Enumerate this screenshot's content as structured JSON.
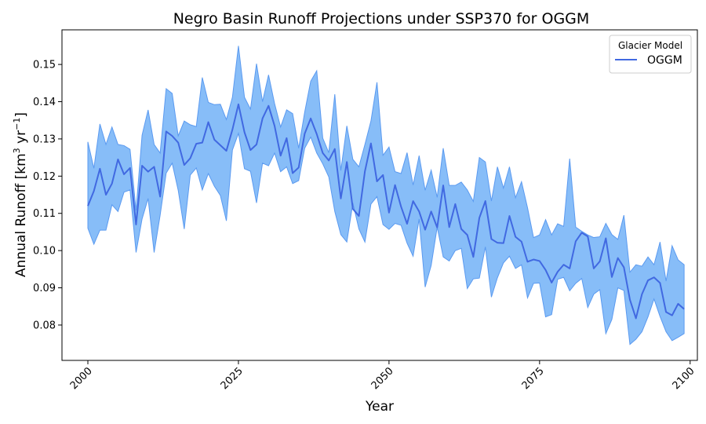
{
  "chart_data": {
    "type": "line",
    "title": "Negro Basin Runoff Projections under SSP370 for OGGM",
    "xlabel": "Year",
    "ylabel": "Annual Runoff [km",
    "ylabel_exp1": "3",
    "ylabel_mid": " yr",
    "ylabel_exp2": "−1",
    "ylabel_end": "]",
    "xlim": [
      1995.7,
      2101.2
    ],
    "ylim": [
      0.0705,
      0.1593
    ],
    "xticks": [
      2000,
      2025,
      2050,
      2075,
      2100
    ],
    "yticks": [
      0.08,
      0.09,
      0.1,
      0.11,
      0.12,
      0.13,
      0.14,
      0.15
    ],
    "ytick_labels": [
      "0.08",
      "0.09",
      "0.10",
      "0.11",
      "0.12",
      "0.13",
      "0.14",
      "0.15"
    ],
    "legend": {
      "title": "Glacier Model",
      "position": "top-right"
    },
    "grid": false,
    "series": [
      {
        "name": "OGGM",
        "color": "#4169e1",
        "band_color": "#87bdf8",
        "band_edge_color": "#5b9af0",
        "x_start": 2000,
        "x_step": 1,
        "mean": [
          0.112,
          0.116,
          0.122,
          0.115,
          0.118,
          0.1245,
          0.1205,
          0.1222,
          0.107,
          0.1228,
          0.1212,
          0.1225,
          0.1145,
          0.132,
          0.1308,
          0.129,
          0.123,
          0.1248,
          0.1287,
          0.129,
          0.1345,
          0.1298,
          0.1283,
          0.1268,
          0.1325,
          0.1393,
          0.1318,
          0.127,
          0.1285,
          0.1355,
          0.1389,
          0.1335,
          0.1255,
          0.1302,
          0.1208,
          0.1223,
          0.1314,
          0.1355,
          0.1313,
          0.1262,
          0.1242,
          0.1273,
          0.114,
          0.1238,
          0.1112,
          0.1093,
          0.1213,
          0.1288,
          0.1186,
          0.1203,
          0.1102,
          0.1176,
          0.1118,
          0.1072,
          0.1133,
          0.1105,
          0.1056,
          0.1105,
          0.1062,
          0.1175,
          0.1063,
          0.1125,
          0.1058,
          0.1042,
          0.0983,
          0.1088,
          0.1133,
          0.1031,
          0.1021,
          0.102,
          0.1093,
          0.1037,
          0.1024,
          0.097,
          0.0976,
          0.0972,
          0.0948,
          0.0914,
          0.0943,
          0.0962,
          0.0952,
          0.1025,
          0.1048,
          0.1038,
          0.0952,
          0.0971,
          0.1033,
          0.0929,
          0.098,
          0.0955,
          0.0868,
          0.0818,
          0.0883,
          0.092,
          0.0928,
          0.0913,
          0.0835,
          0.0826,
          0.0857,
          0.0843
        ],
        "upper": [
          0.1292,
          0.1221,
          0.134,
          0.1285,
          0.1332,
          0.1285,
          0.1282,
          0.1272,
          0.1108,
          0.131,
          0.1378,
          0.1285,
          0.1262,
          0.1435,
          0.1422,
          0.1308,
          0.1348,
          0.1338,
          0.1333,
          0.1465,
          0.1398,
          0.1392,
          0.1393,
          0.1352,
          0.1412,
          0.155,
          0.1412,
          0.138,
          0.1502,
          0.14,
          0.1472,
          0.1395,
          0.1332,
          0.1378,
          0.1368,
          0.1275,
          0.1372,
          0.1455,
          0.1483,
          0.1302,
          0.1263,
          0.142,
          0.1215,
          0.1335,
          0.1245,
          0.1225,
          0.1285,
          0.1348,
          0.1452,
          0.1256,
          0.1278,
          0.1212,
          0.1207,
          0.1263,
          0.1176,
          0.1255,
          0.1162,
          0.1216,
          0.1143,
          0.1275,
          0.1175,
          0.1175,
          0.1184,
          0.1163,
          0.1132,
          0.125,
          0.1238,
          0.1133,
          0.1225,
          0.1168,
          0.1225,
          0.1142,
          0.1185,
          0.1115,
          0.1035,
          0.1042,
          0.1083,
          0.1042,
          0.1072,
          0.1065,
          0.1247,
          0.1063,
          0.1052,
          0.1042,
          0.1035,
          0.1037,
          0.1073,
          0.1043,
          0.103,
          0.1095,
          0.0942,
          0.0962,
          0.0958,
          0.0983,
          0.0962,
          0.1023,
          0.0918,
          0.1013,
          0.0975,
          0.0962
        ],
        "lower": [
          0.106,
          0.1017,
          0.1055,
          0.1055,
          0.1123,
          0.1105,
          0.1157,
          0.1163,
          0.0995,
          0.1085,
          0.114,
          0.0995,
          0.1095,
          0.1208,
          0.1235,
          0.1162,
          0.1058,
          0.1203,
          0.1222,
          0.1163,
          0.1207,
          0.1173,
          0.1148,
          0.108,
          0.127,
          0.1315,
          0.122,
          0.1213,
          0.1128,
          0.1235,
          0.1228,
          0.1262,
          0.1212,
          0.1225,
          0.118,
          0.1188,
          0.1275,
          0.1305,
          0.1262,
          0.1233,
          0.1198,
          0.1105,
          0.1043,
          0.1023,
          0.1128,
          0.1058,
          0.1023,
          0.1125,
          0.1145,
          0.107,
          0.1057,
          0.1073,
          0.1068,
          0.102,
          0.0985,
          0.1085,
          0.0902,
          0.096,
          0.1063,
          0.0983,
          0.0972,
          0.1,
          0.1006,
          0.0898,
          0.0924,
          0.0926,
          0.101,
          0.0875,
          0.0927,
          0.0967,
          0.0985,
          0.0952,
          0.0962,
          0.0873,
          0.0912,
          0.0913,
          0.0822,
          0.0828,
          0.0923,
          0.0928,
          0.0892,
          0.0912,
          0.0925,
          0.0847,
          0.0883,
          0.0895,
          0.0777,
          0.0815,
          0.09,
          0.0893,
          0.0748,
          0.0762,
          0.0782,
          0.0822,
          0.087,
          0.0823,
          0.0782,
          0.0758,
          0.0767,
          0.0777
        ]
      }
    ]
  }
}
